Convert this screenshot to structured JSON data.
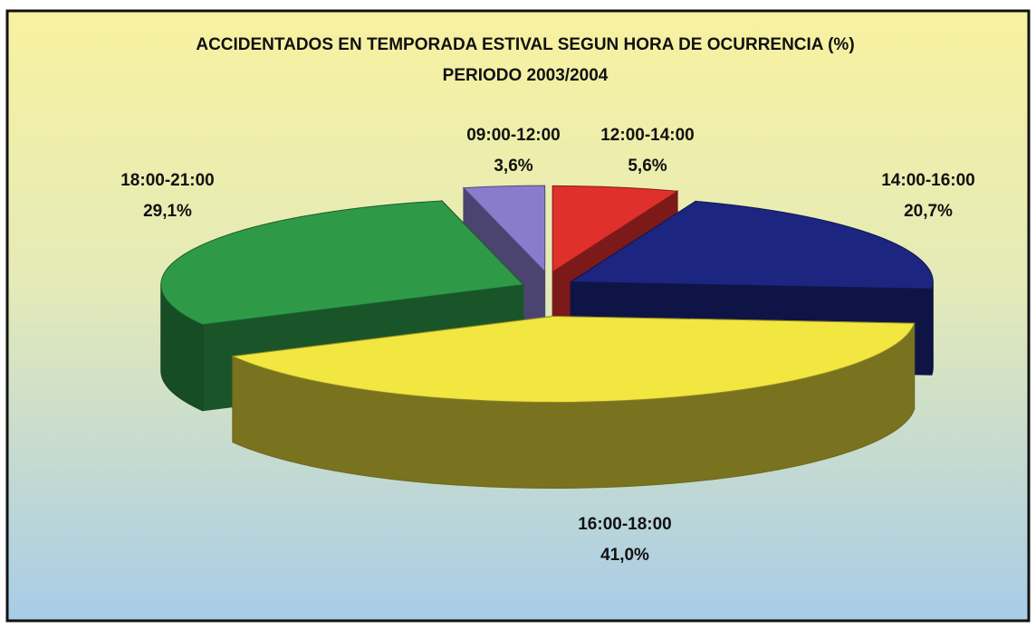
{
  "chart_data": {
    "type": "pie",
    "title": "ACCIDENTADOS EN TEMPORADA ESTIVAL SEGUN HORA DE OCURRENCIA (%)",
    "subtitle": "PERIODO 2003/2004",
    "categories": [
      "09:00-12:00",
      "12:00-14:00",
      "14:00-16:00",
      "16:00-18:00",
      "18:00-21:00"
    ],
    "values": [
      3.6,
      5.6,
      20.7,
      41.0,
      29.1
    ],
    "value_labels": [
      "3,6%",
      "5,6%",
      "20,7%",
      "41,0%",
      "29,1%"
    ],
    "colors": [
      "#8a7ccc",
      "#e0302c",
      "#1c2580",
      "#f2e640",
      "#2e9a48"
    ]
  }
}
